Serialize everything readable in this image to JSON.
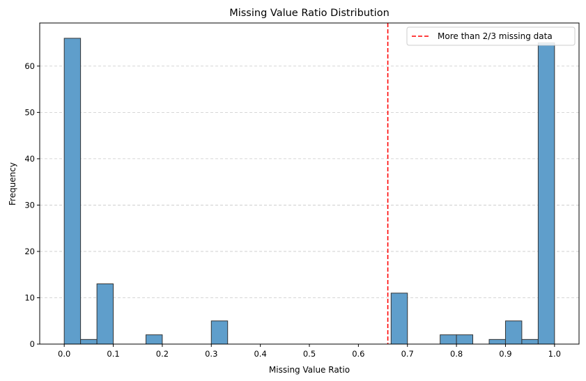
{
  "chart_data": {
    "type": "bar",
    "title": "Missing Value Ratio Distribution",
    "xlabel": "Missing Value Ratio",
    "ylabel": "Frequency",
    "xlim": [
      -0.05,
      1.05
    ],
    "ylim": [
      0,
      69.3
    ],
    "bin_width": 0.0333,
    "bins": [
      {
        "x0": 0.0,
        "count": 66
      },
      {
        "x0": 0.0333,
        "count": 1
      },
      {
        "x0": 0.0667,
        "count": 13
      },
      {
        "x0": 0.1,
        "count": 0
      },
      {
        "x0": 0.1333,
        "count": 0
      },
      {
        "x0": 0.1667,
        "count": 2
      },
      {
        "x0": 0.2,
        "count": 0
      },
      {
        "x0": 0.2333,
        "count": 0
      },
      {
        "x0": 0.2667,
        "count": 0
      },
      {
        "x0": 0.3,
        "count": 5
      },
      {
        "x0": 0.3333,
        "count": 0
      },
      {
        "x0": 0.3667,
        "count": 0
      },
      {
        "x0": 0.4,
        "count": 0
      },
      {
        "x0": 0.4333,
        "count": 0
      },
      {
        "x0": 0.4667,
        "count": 0
      },
      {
        "x0": 0.5,
        "count": 0
      },
      {
        "x0": 0.5333,
        "count": 0
      },
      {
        "x0": 0.5667,
        "count": 0
      },
      {
        "x0": 0.6,
        "count": 0
      },
      {
        "x0": 0.6333,
        "count": 0
      },
      {
        "x0": 0.6667,
        "count": 11
      },
      {
        "x0": 0.7,
        "count": 0
      },
      {
        "x0": 0.7333,
        "count": 0
      },
      {
        "x0": 0.7667,
        "count": 2
      },
      {
        "x0": 0.8,
        "count": 2
      },
      {
        "x0": 0.8333,
        "count": 0
      },
      {
        "x0": 0.8667,
        "count": 1
      },
      {
        "x0": 0.9,
        "count": 5
      },
      {
        "x0": 0.9333,
        "count": 1
      },
      {
        "x0": 0.9667,
        "count": 65
      }
    ],
    "x_ticks": [
      "0.0",
      "0.1",
      "0.2",
      "0.3",
      "0.4",
      "0.5",
      "0.6",
      "0.7",
      "0.8",
      "0.9",
      "1.0"
    ],
    "y_ticks": [
      "0",
      "10",
      "20",
      "30",
      "40",
      "50",
      "60"
    ],
    "threshold": {
      "x": 0.66,
      "label": "More than 2/3 missing data",
      "color": "#ff0000",
      "style": "dashed"
    },
    "bar_color": "#5f9ecb",
    "bar_edge_color": "#333333",
    "grid": {
      "y": true,
      "style": "dashed"
    },
    "legend_position": "upper-right"
  }
}
